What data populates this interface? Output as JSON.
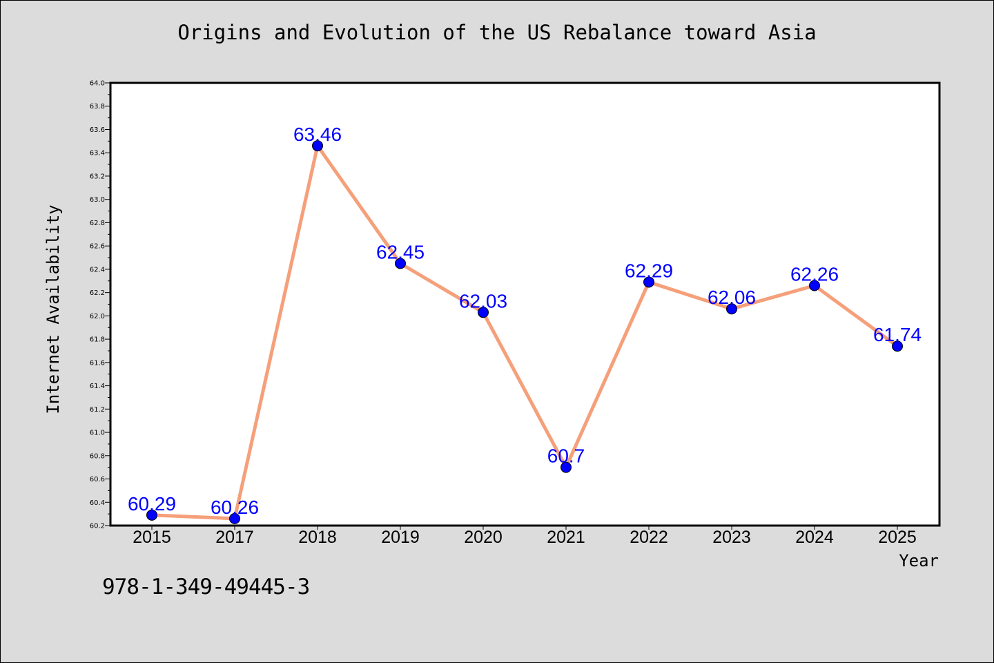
{
  "chart_data": {
    "type": "line",
    "title": "Origins and Evolution of the US Rebalance toward Asia",
    "xlabel": "Year",
    "ylabel": "Internet Availability",
    "categories": [
      "2015",
      "2017",
      "2018",
      "2019",
      "2020",
      "2021",
      "2022",
      "2023",
      "2024",
      "2025"
    ],
    "series": [
      {
        "values": [
          60.29,
          60.26,
          63.46,
          62.45,
          62.03,
          60.7,
          62.29,
          62.06,
          62.26,
          61.74
        ],
        "labels": [
          "60.29",
          "60.26",
          "63.46",
          "62.45",
          "62.03",
          "60.7",
          "62.29",
          "62.06",
          "62.26",
          "61.74"
        ]
      }
    ],
    "ylim": [
      60.2,
      64.0
    ],
    "yticks": [
      "60.2",
      "60.4",
      "60.6",
      "60.8",
      "61.0",
      "61.2",
      "61.4",
      "61.6",
      "61.8",
      "62.0",
      "62.2",
      "62.4",
      "62.6",
      "62.8",
      "63.0",
      "63.2",
      "63.4",
      "63.6",
      "63.8",
      "64.0"
    ],
    "ytick_values": [
      60.2,
      60.4,
      60.6,
      60.8,
      61.0,
      61.2,
      61.4,
      61.6,
      61.8,
      62.0,
      62.2,
      62.4,
      62.6,
      62.8,
      63.0,
      63.2,
      63.4,
      63.6,
      63.8,
      64.0
    ],
    "grid": false,
    "legend": "none",
    "line_color": "#f5a07a",
    "marker_color": "#0000ff",
    "label_color": "#0000ff"
  },
  "footer": {
    "isbn": "978-1-349-49445-3"
  }
}
